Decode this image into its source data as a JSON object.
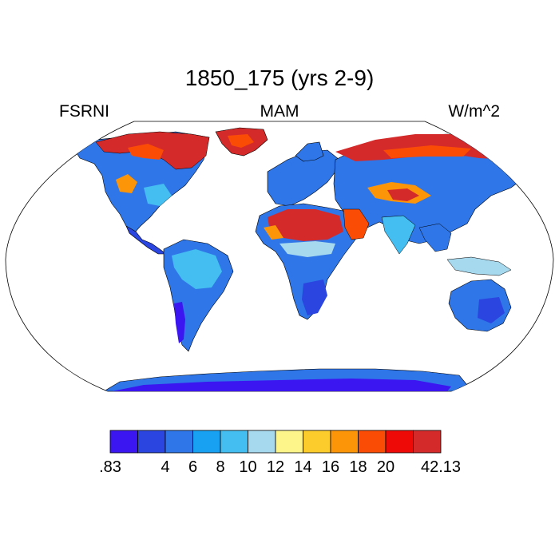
{
  "title": "1850_175 (yrs 2-9)",
  "left_label": "FSRNI",
  "center_label": "MAM",
  "right_label": "W/m^2",
  "colorbar": {
    "labels": [
      ".83",
      "4",
      "6",
      "8",
      "10",
      "12",
      "14",
      "16",
      "18",
      "20",
      "42.13"
    ],
    "colors": [
      "#3b16f0",
      "#2a45e0",
      "#2f76e8",
      "#18a0f2",
      "#44bdf0",
      "#a6d8ee",
      "#fef58a",
      "#fccc2c",
      "#fc9508",
      "#fb4c06",
      "#ee0a07",
      "#d42a2a"
    ]
  }
}
